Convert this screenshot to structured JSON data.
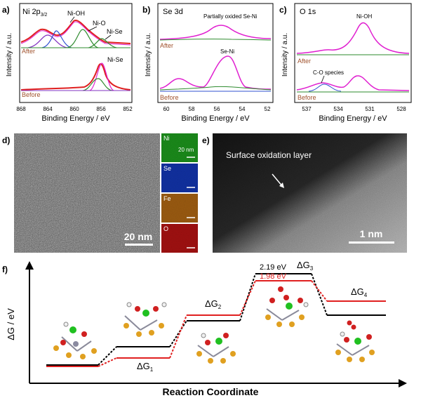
{
  "panels": {
    "a": {
      "letter": "a)",
      "title": "Ni 2p",
      "sub": "3/2",
      "xlabel": "Binding Energy / eV",
      "ylabel": "Intensity / a.u.",
      "ticks": [
        "868",
        "864",
        "860",
        "856",
        "852"
      ],
      "peaks": [
        "Ni-OH",
        "Ni-O",
        "Ni-Se",
        "Ni-Se"
      ],
      "after": "After",
      "before": "Before"
    },
    "b": {
      "letter": "b)",
      "title": "Se 3d",
      "xlabel": "Binding Energy / eV",
      "ylabel": "Intensity / a.u.",
      "ticks": [
        "60",
        "58",
        "56",
        "54",
        "52"
      ],
      "peaks": [
        "Partially oxided Se-Ni",
        "Se-Ni"
      ],
      "after": "After",
      "before": "Before"
    },
    "c": {
      "letter": "c)",
      "title": "O 1s",
      "xlabel": "Binding Energy / eV",
      "ylabel": "Intensity / a.u.",
      "ticks": [
        "537",
        "534",
        "531",
        "528"
      ],
      "peaks": [
        "Ni-OH",
        "C-O species"
      ],
      "after": "After",
      "before": "Before"
    },
    "d": {
      "letter": "d)",
      "scale": "20 nm",
      "maps": [
        "Ni",
        "Se",
        "Fe",
        "O"
      ],
      "map_scale": "20 nm"
    },
    "e": {
      "letter": "e)",
      "label": "Surface oxidation layer",
      "scale": "1 nm"
    },
    "f": {
      "letter": "f)",
      "ylabel": "ΔG / eV",
      "xlabel": "Reaction Coordinate",
      "black_value": "2.19 eV",
      "red_value": "1.98 eV",
      "dg": [
        "ΔG",
        "ΔG",
        "ΔG",
        "ΔG"
      ],
      "dg_sub": [
        "1",
        "2",
        "3",
        "4"
      ]
    }
  },
  "colors": {
    "after_label": "#a0522d",
    "before_label": "#a0522d",
    "fit_magenta": "#e020d0",
    "fit_green": "#2e8b2e",
    "fit_blue": "#3050d0",
    "fit_purple": "#8030c0",
    "data_red": "#e02020",
    "black_line": "#000000",
    "red_line": "#e02020",
    "map_ni": "#1a8a1a",
    "map_se": "#1030a0",
    "map_fe": "#9a5a10",
    "map_o": "#a01010"
  }
}
